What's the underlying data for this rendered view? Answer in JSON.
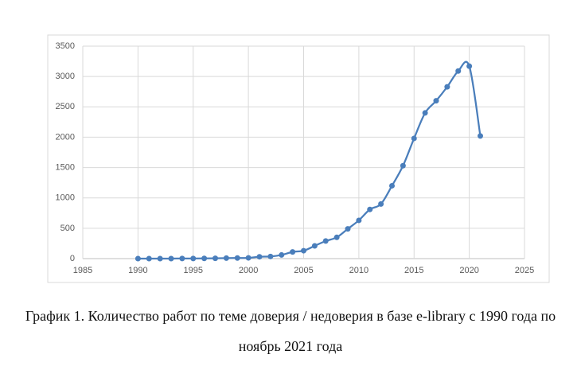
{
  "chart_data": {
    "type": "line",
    "x": [
      1990,
      1991,
      1992,
      1993,
      1994,
      1995,
      1996,
      1997,
      1998,
      1999,
      2000,
      2001,
      2002,
      2003,
      2004,
      2005,
      2006,
      2007,
      2008,
      2009,
      2010,
      2011,
      2012,
      2013,
      2014,
      2015,
      2016,
      2017,
      2018,
      2019,
      2020,
      2021
    ],
    "series": [
      {
        "name": null,
        "color": "#4a7ebb",
        "values": [
          0,
          0,
          0,
          0,
          2,
          2,
          3,
          5,
          8,
          10,
          12,
          30,
          35,
          60,
          110,
          130,
          210,
          290,
          350,
          490,
          630,
          810,
          900,
          1200,
          1530,
          1980,
          2400,
          2600,
          2830,
          3090,
          3170,
          2020
        ]
      }
    ],
    "xlim": [
      1985,
      2025
    ],
    "xticks": [
      1985,
      1990,
      1995,
      2000,
      2005,
      2010,
      2015,
      2020,
      2025
    ],
    "ylim": [
      0,
      3500
    ],
    "yticks": [
      0,
      500,
      1000,
      1500,
      2000,
      2500,
      3000,
      3500
    ],
    "grid": true,
    "smooth": true
  },
  "caption": "График 1. Количество работ по теме доверия / недоверия в базе e-library с 1990 года по ноябрь 2021 года"
}
